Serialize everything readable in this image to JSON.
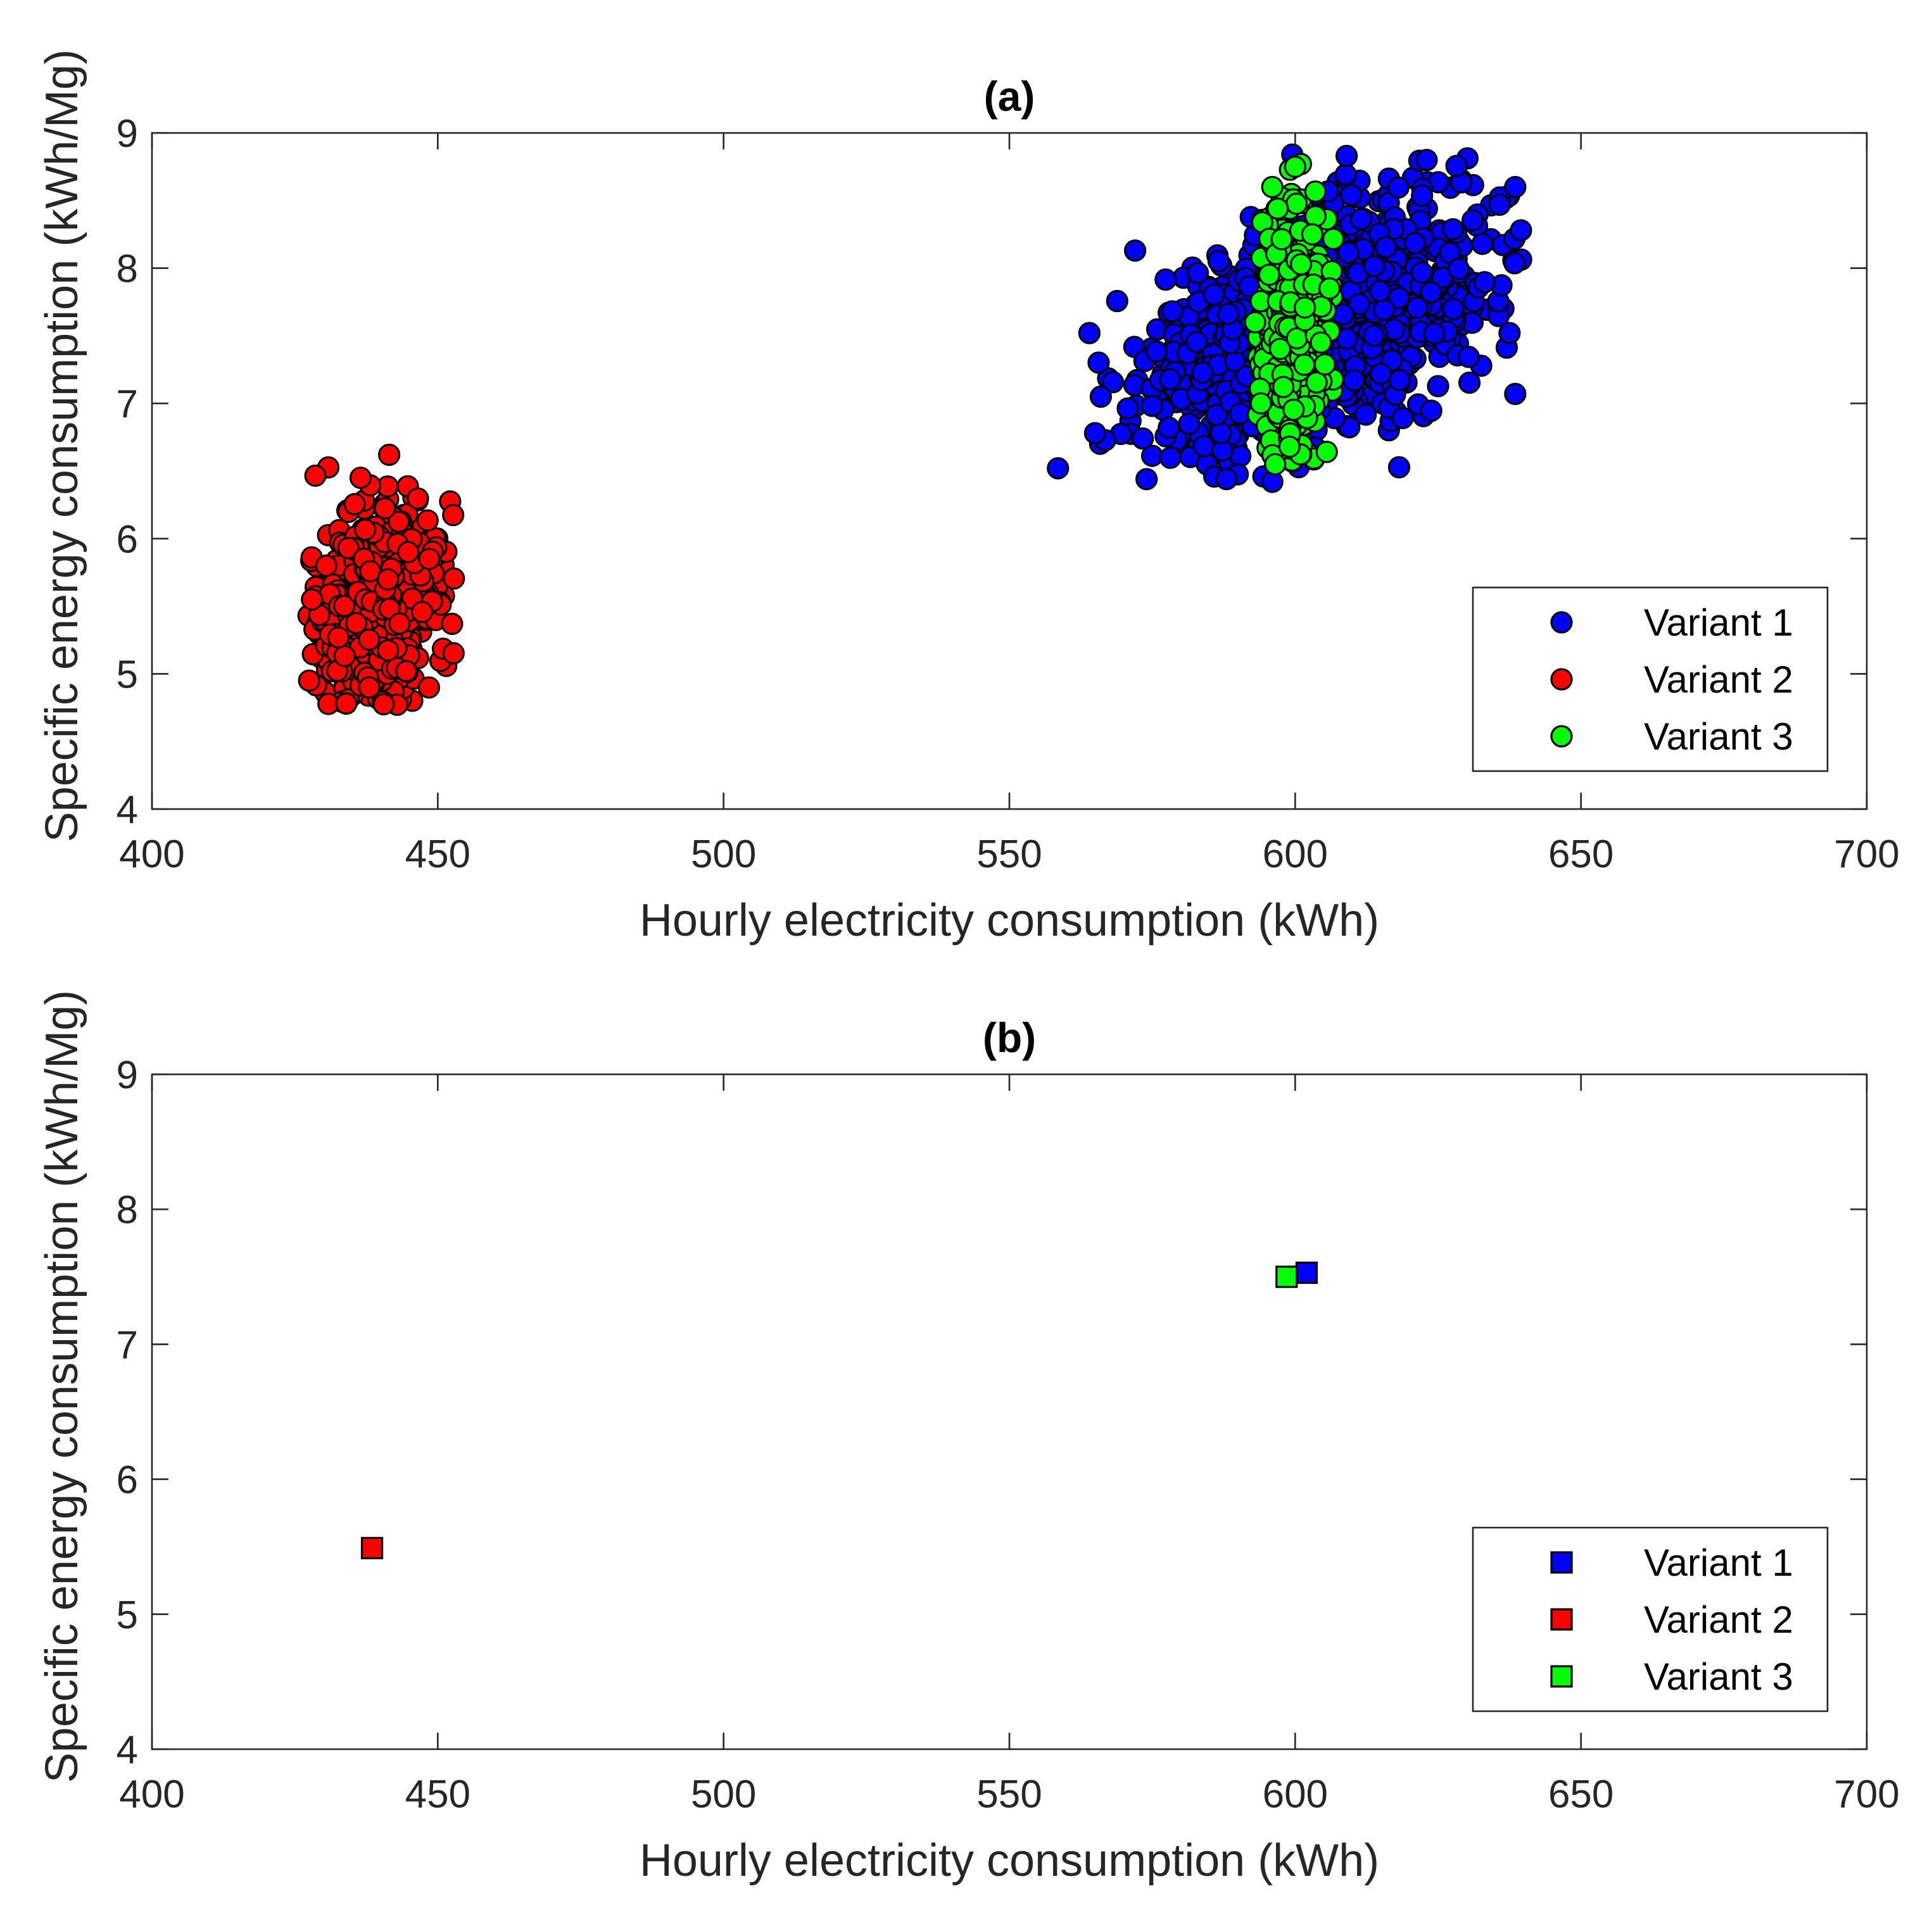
{
  "chart_data": [
    {
      "type": "scatter",
      "title": "(a)",
      "xlabel": "Hourly electricity consumption (kWh)",
      "ylabel": "Specific energy consumption (kWh/Mg)",
      "xlim": [
        400,
        700
      ],
      "ylim": [
        4,
        9
      ],
      "xticks": [
        400,
        450,
        500,
        550,
        600,
        650,
        700
      ],
      "yticks": [
        4,
        5,
        6,
        7,
        8,
        9
      ],
      "grid": false,
      "legend_position": "bottom-right",
      "marker": "circle",
      "series": [
        {
          "name": "Variant 1",
          "color": "#0000ff",
          "cluster": {
            "count": 1400,
            "mean_x": 603,
            "mean_y": 7.55,
            "sd_x": 13.5,
            "sd_y": 0.42,
            "correlation": 0.45,
            "x_range": [
              558,
              640
            ],
            "y_range": [
              6.4,
              8.85
            ]
          },
          "points": [
            [
              558.5,
              6.52
            ],
            [
              564,
              7.52
            ],
            [
              572,
              8.13
            ],
            [
              574,
              6.44
            ],
            [
              588,
              6.44
            ],
            [
              596,
              6.42
            ],
            [
              599.5,
              8.84
            ],
            [
              609,
              8.83
            ],
            [
              623,
              8.8
            ],
            [
              638.5,
              8.6
            ],
            [
              639.5,
              8.28
            ],
            [
              638.5,
              7.07
            ],
            [
              637.5,
              7.52
            ],
            [
              565,
              6.78
            ],
            [
              566,
              7.05
            ]
          ]
        },
        {
          "name": "Variant 2",
          "color": "#ff0000",
          "cluster": {
            "count": 700,
            "mean_x": 439,
            "mean_y": 5.5,
            "sd_x": 5,
            "sd_y": 0.35,
            "correlation": 0.2,
            "x_range": [
              427,
              453
            ],
            "y_range": [
              4.75,
              6.65
            ]
          },
          "points": [
            [
              441.5,
              6.62
            ],
            [
              436.5,
              6.45
            ],
            [
              452.5,
              5.37
            ],
            [
              427.5,
              4.95
            ],
            [
              434,
              4.78
            ],
            [
              448.5,
              5.85
            ],
            [
              428,
              5.55
            ],
            [
              430.5,
              5.8
            ],
            [
              444.5,
              5.02
            ],
            [
              438,
              4.9
            ]
          ]
        },
        {
          "name": "Variant 3",
          "color": "#00ff00",
          "cluster": {
            "count": 450,
            "mean_x": 599,
            "mean_y": 7.5,
            "sd_x": 3,
            "sd_y": 0.5,
            "correlation": 0.0,
            "x_range": [
              593,
              607
            ],
            "y_range": [
              6.55,
              8.8
            ]
          },
          "points": [
            [
              601,
              8.77
            ],
            [
              600,
              8.75
            ],
            [
              596,
              8.6
            ],
            [
              593,
              7.6
            ],
            [
              606,
              7.85
            ],
            [
              596.5,
              6.55
            ],
            [
              599,
              6.68
            ],
            [
              603,
              8.25
            ],
            [
              604.5,
              7.45
            ],
            [
              594,
              7.0
            ]
          ]
        }
      ]
    },
    {
      "type": "scatter",
      "title": "(b)",
      "xlabel": "Hourly electricity consumption (kWh)",
      "ylabel": "Specific energy consumption (kWh/Mg)",
      "xlim": [
        400,
        700
      ],
      "ylim": [
        4,
        9
      ],
      "xticks": [
        400,
        450,
        500,
        550,
        600,
        650,
        700
      ],
      "yticks": [
        4,
        5,
        6,
        7,
        8,
        9
      ],
      "grid": false,
      "legend_position": "bottom-right",
      "marker": "square",
      "series": [
        {
          "name": "Variant 1",
          "color": "#0000ff",
          "points": [
            [
              602,
              7.53
            ]
          ]
        },
        {
          "name": "Variant 2",
          "color": "#ff0000",
          "points": [
            [
              438.5,
              5.49
            ]
          ]
        },
        {
          "name": "Variant 3",
          "color": "#00ff00",
          "points": [
            [
              598.5,
              7.5
            ]
          ]
        }
      ]
    }
  ]
}
